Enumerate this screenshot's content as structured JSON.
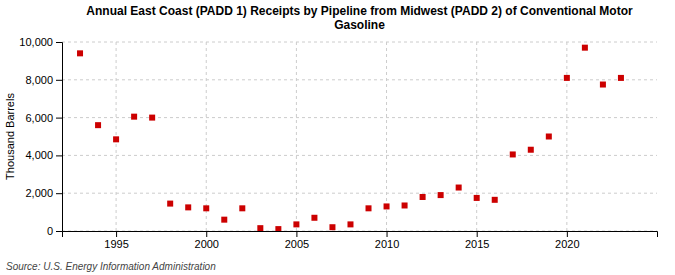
{
  "chart_data": {
    "type": "scatter",
    "title": "Annual East Coast (PADD 1) Receipts by Pipeline from Midwest (PADD 2) of Conventional Motor\nGasoline",
    "ylabel": "Thousand Barrels",
    "source": "Source: U.S. Energy Information Administration",
    "x": [
      1993,
      1994,
      1995,
      1996,
      1997,
      1998,
      1999,
      2000,
      2001,
      2002,
      2003,
      2004,
      2005,
      2006,
      2007,
      2008,
      2009,
      2010,
      2011,
      2012,
      2013,
      2014,
      2015,
      2016,
      2017,
      2018,
      2019,
      2020,
      2021,
      2022,
      2023
    ],
    "values": [
      9400,
      5600,
      4850,
      6050,
      6000,
      1450,
      1250,
      1200,
      600,
      1200,
      150,
      100,
      350,
      700,
      200,
      350,
      1200,
      1300,
      1350,
      1800,
      1900,
      2300,
      1750,
      1650,
      4050,
      4300,
      5000,
      8100,
      9700,
      7750,
      8100
    ],
    "color": "#cc0000",
    "marker": "square",
    "xlim": [
      1992,
      2025
    ],
    "ylim": [
      0,
      10000
    ],
    "xticks": [
      1995,
      2000,
      2005,
      2010,
      2015,
      2020
    ],
    "yticks": [
      0,
      {
        "value": 2000,
        "label": "2,000"
      },
      {
        "value": 4000,
        "label": "4,000"
      },
      {
        "value": 6000,
        "label": "6,000"
      },
      {
        "value": 8000,
        "label": "8,000"
      },
      {
        "value": 10000,
        "label": "10,000"
      }
    ],
    "grid": true
  }
}
